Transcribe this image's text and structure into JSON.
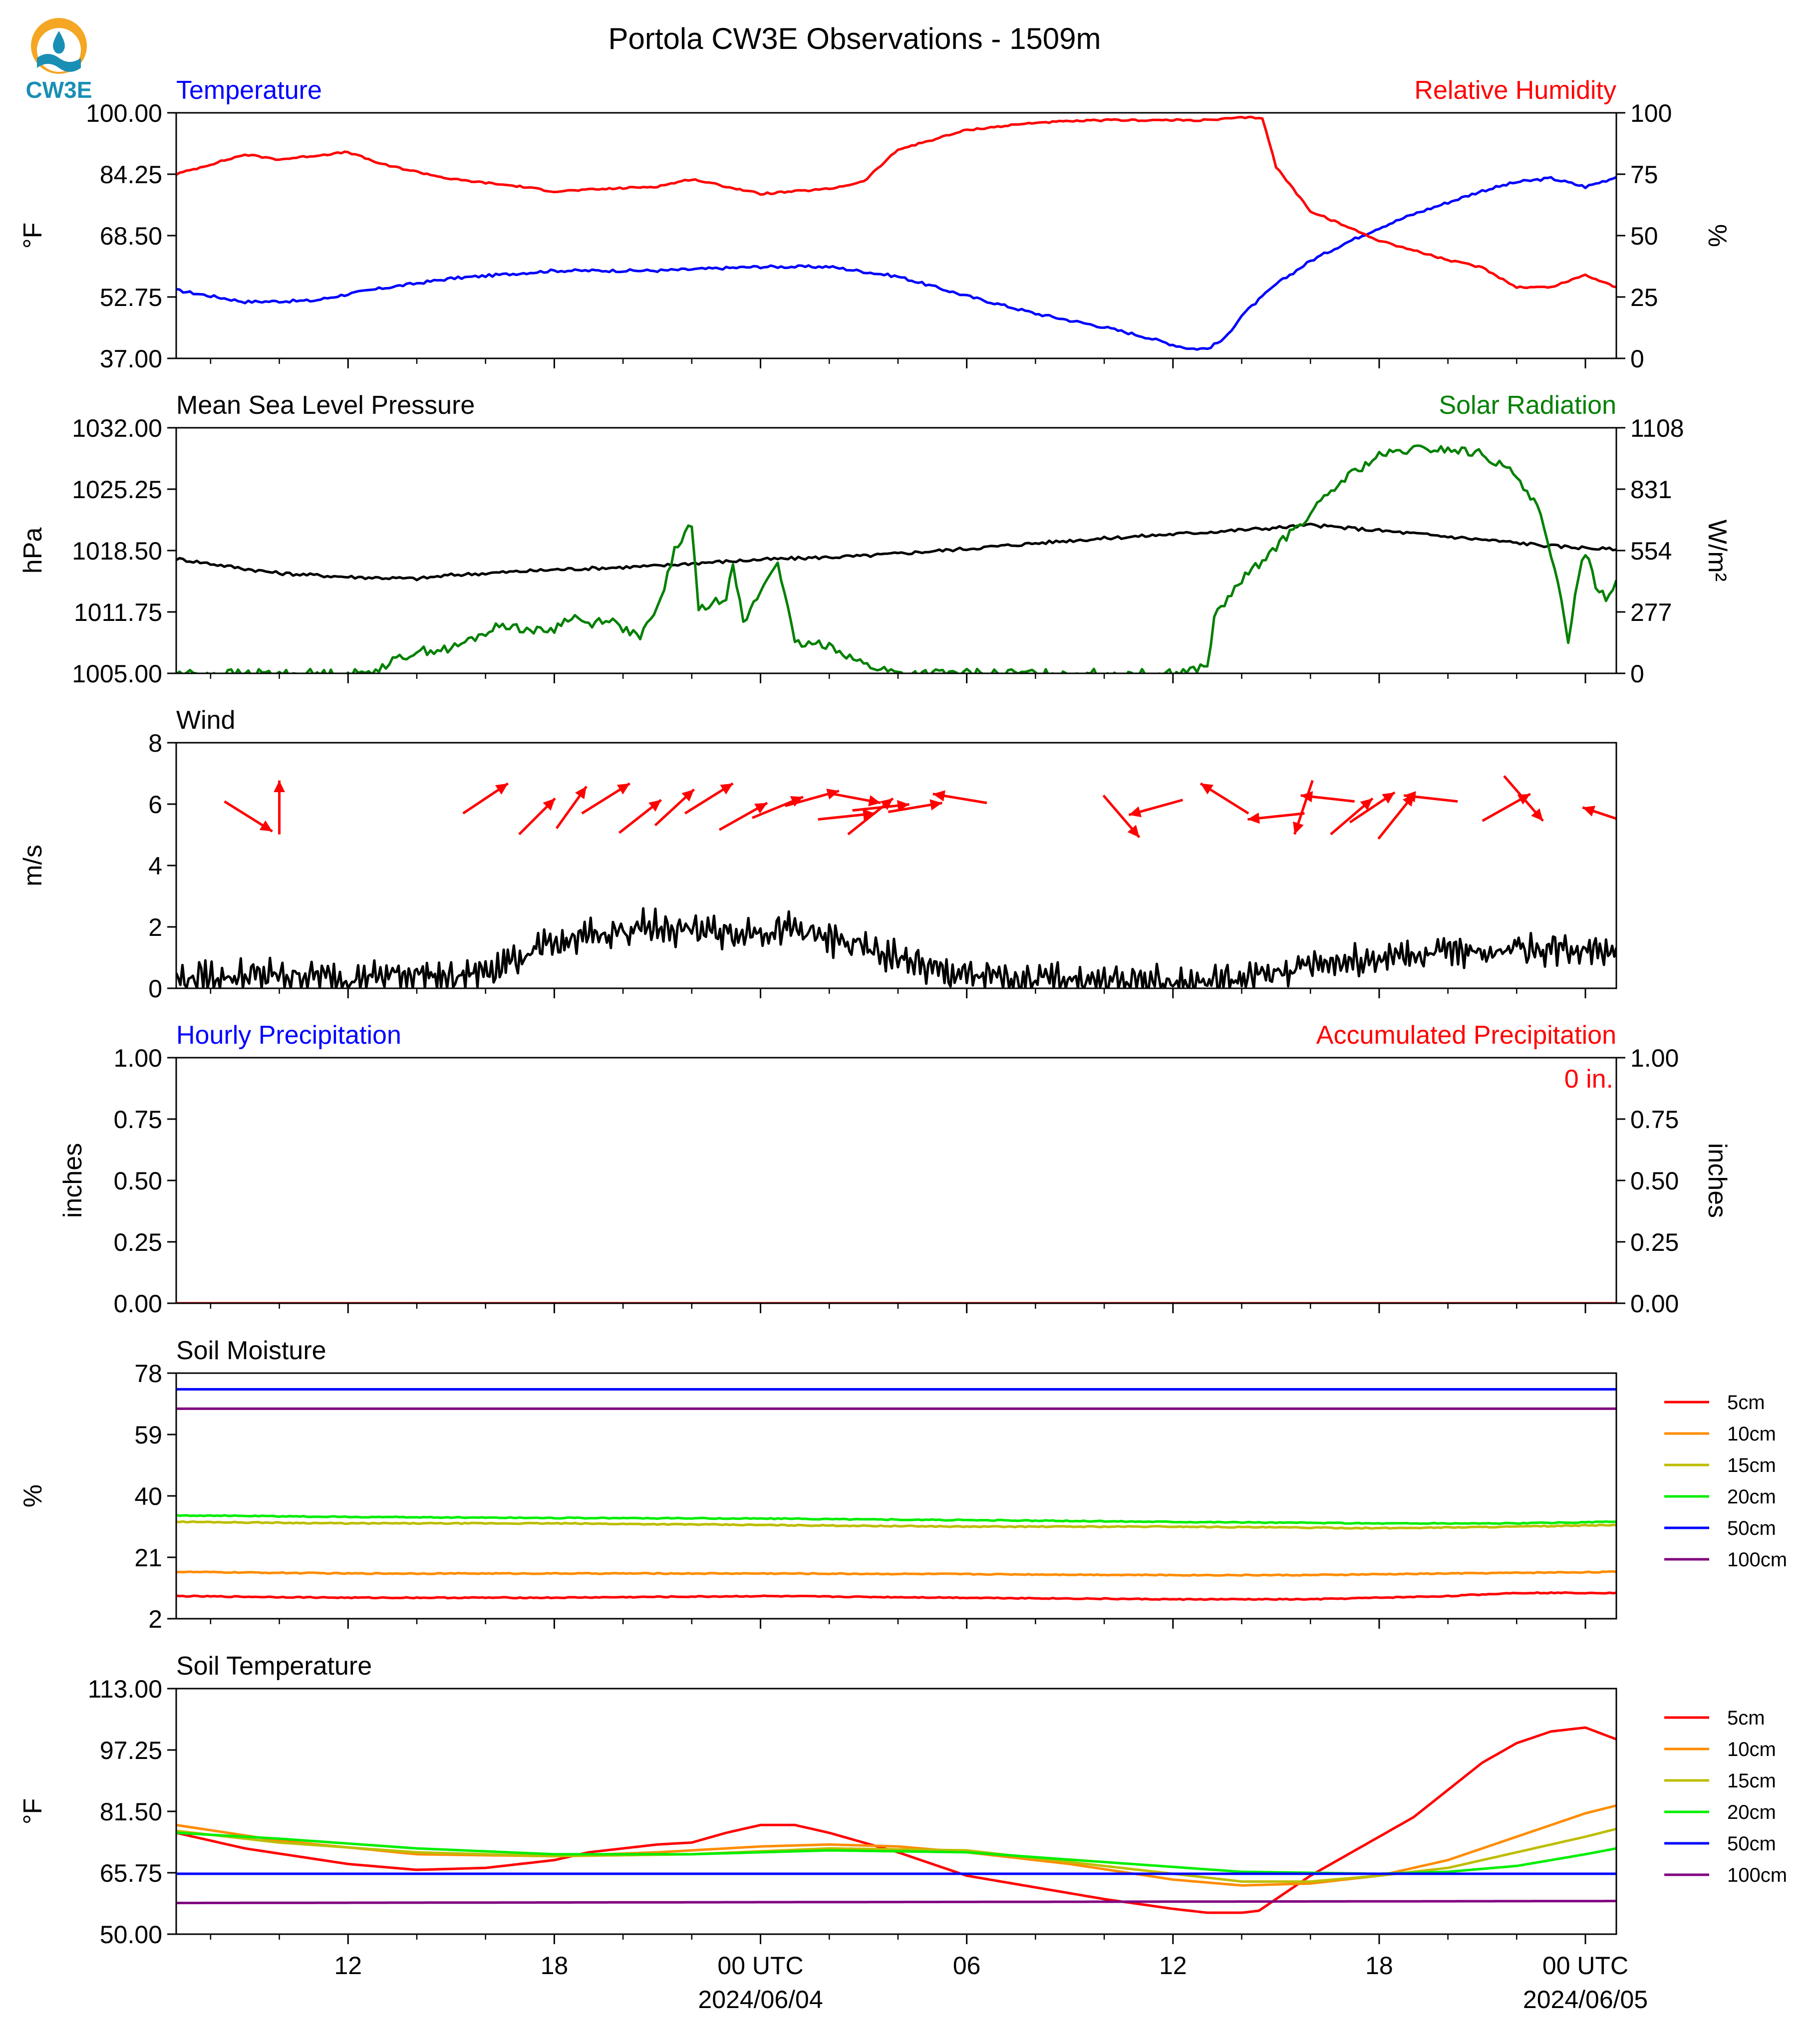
{
  "title": "Portola CW3E Observations - 1509m",
  "logo_text": "CW3E",
  "colors": {
    "blue": "#0000ff",
    "red": "#ff0000",
    "green": "#008000",
    "black": "#000000",
    "legend": [
      "#ff0000",
      "#ff8c00",
      "#bdbd00",
      "#00ee00",
      "#0000ff",
      "#800080"
    ],
    "logo_orange": "#f5a623",
    "logo_teal": "#1a8fb5"
  },
  "x_axis": {
    "tick_labels": [
      {
        "hour": 12,
        "label": "12"
      },
      {
        "hour": 18,
        "label": "18"
      },
      {
        "hour": 24,
        "label": "00 UTC",
        "date": "2024/06/04"
      },
      {
        "hour": 30,
        "label": "06"
      },
      {
        "hour": 36,
        "label": "12"
      },
      {
        "hour": 42,
        "label": "18"
      },
      {
        "hour": 48,
        "label": "00 UTC",
        "date": "2024/06/05"
      }
    ]
  },
  "chart_data": [
    {
      "type": "line",
      "title_left": "Temperature",
      "title_right": "Relative Humidity",
      "ylabel_left": "°F",
      "ylabel_right": "%",
      "ylim_left": [
        37,
        100
      ],
      "ylim_right": [
        0,
        100
      ],
      "yticks_left": [
        "100.00",
        "84.25",
        "68.50",
        "52.75",
        "37.00"
      ],
      "yticks_right": [
        "100",
        "75",
        "50",
        "25",
        "0"
      ],
      "series": [
        {
          "axis": "left",
          "color": "blue",
          "x": [
            7,
            9,
            11,
            12,
            13,
            15,
            18,
            21,
            24,
            26,
            28,
            30,
            32,
            34,
            35.2,
            36,
            36.5,
            37,
            37.5,
            38,
            39,
            40,
            41,
            42,
            43,
            44,
            45,
            46,
            47,
            48,
            48.9
          ],
          "y": [
            54.5,
            51.5,
            51.8,
            53.5,
            55,
            57.5,
            59.5,
            59.5,
            60.5,
            60.5,
            58,
            53,
            48.5,
            45,
            42.5,
            40.5,
            39.5,
            39.5,
            42,
            48,
            56,
            62,
            66.5,
            70.5,
            74,
            77,
            80,
            82.2,
            83.2,
            81,
            83.5
          ]
        },
        {
          "axis": "right",
          "color": "red",
          "x": [
            7,
            9,
            10,
            12,
            13,
            15,
            17,
            18,
            21,
            22,
            24,
            26,
            27,
            28,
            30,
            32,
            34,
            35,
            36,
            37,
            38,
            38.6,
            39,
            40,
            42,
            44,
            45,
            46,
            47,
            48,
            48.9
          ],
          "y": [
            75,
            83,
            81,
            84,
            79,
            73,
            70,
            68,
            70,
            73,
            67,
            69,
            72,
            85,
            93,
            96,
            97,
            97,
            97,
            97,
            98,
            98,
            78,
            60,
            48,
            40,
            37,
            29,
            29,
            34,
            29
          ]
        }
      ]
    },
    {
      "type": "line",
      "title_left": "Mean Sea Level Pressure",
      "title_right": "Solar Radiation",
      "ylabel_left": "hPa",
      "ylabel_right": "W/m²",
      "ylim_left": [
        1005,
        1032
      ],
      "ylim_right": [
        0,
        1108
      ],
      "yticks_left": [
        "1032.00",
        "1025.25",
        "1018.50",
        "1011.75",
        "1005.00"
      ],
      "yticks_right": [
        "1108",
        "831",
        "554",
        "277",
        "0"
      ],
      "series": [
        {
          "axis": "left",
          "color": "black",
          "x": [
            7,
            9,
            10,
            12,
            14,
            15,
            18,
            21,
            22,
            24,
            27,
            30,
            33,
            36,
            39,
            40,
            42,
            45,
            47,
            48,
            48.9
          ],
          "y": [
            1017.6,
            1016.5,
            1016,
            1015.6,
            1015.4,
            1015.8,
            1016.4,
            1016.8,
            1017.1,
            1017.5,
            1017.9,
            1018.7,
            1019.6,
            1020.3,
            1021,
            1021.3,
            1020.7,
            1019.7,
            1019,
            1018.8,
            1018.6
          ]
        },
        {
          "axis": "right",
          "color": "green",
          "x": [
            7,
            12.5,
            14,
            15,
            16.5,
            17.5,
            18,
            18.5,
            19,
            19.5,
            20.5,
            21,
            21.5,
            22,
            22.2,
            23,
            23.2,
            23.5,
            24,
            24.5,
            25,
            26,
            27,
            28,
            30,
            33,
            35.5,
            36,
            37,
            37.2,
            38,
            40,
            41,
            42,
            43,
            44,
            45,
            46,
            46.6,
            47,
            47.3,
            47.5,
            47.8,
            48,
            48.3,
            48.6,
            48.9
          ],
          "y": [
            0,
            0,
            100,
            110,
            220,
            190,
            200,
            260,
            220,
            250,
            160,
            290,
            550,
            680,
            280,
            350,
            510,
            220,
            370,
            510,
            130,
            130,
            40,
            0,
            0,
            0,
            0,
            0,
            30,
            250,
            420,
            720,
            880,
            980,
            1010,
            1010,
            990,
            890,
            760,
            520,
            330,
            150,
            450,
            550,
            400,
            340,
            420
          ]
        }
      ]
    },
    {
      "type": "line",
      "title_left": "Wind",
      "ylabel_left": "m/s",
      "ylim_left": [
        0,
        8
      ],
      "yticks_left": [
        "8",
        "6",
        "4",
        "2",
        "0"
      ],
      "series": [
        {
          "axis": "left",
          "color": "black",
          "x": [
            7,
            9,
            11,
            12,
            13,
            14,
            15,
            16,
            17,
            18,
            19,
            20,
            21,
            22,
            23,
            24,
            25,
            26,
            27,
            28,
            29,
            30,
            31,
            32,
            33,
            34,
            35,
            36,
            37,
            38,
            39,
            40,
            41,
            42,
            43,
            44,
            45,
            46,
            47,
            48,
            48.9
          ],
          "y": [
            0.3,
            0.4,
            0.4,
            0.3,
            0.4,
            0.5,
            0.3,
            0.6,
            1,
            1.4,
            1.7,
            1.9,
            2,
            1.9,
            1.8,
            1.9,
            1.9,
            1.6,
            1.3,
            1,
            0.6,
            0.4,
            0.3,
            0.3,
            0.3,
            0.2,
            0.2,
            0.2,
            0.2,
            0.3,
            0.5,
            0.8,
            0.9,
            1,
            1.1,
            1.2,
            1.2,
            1.3,
            1.3,
            1.3,
            1.4
          ]
        }
      ],
      "barbs": [
        {
          "x": 9.1,
          "u": 0.8,
          "v": -0.5
        },
        {
          "x": 10,
          "u": 0,
          "v": 0.9
        },
        {
          "x": 16,
          "u": 0.75,
          "v": 0.5
        },
        {
          "x": 17.5,
          "u": 0.6,
          "v": 0.6
        },
        {
          "x": 18.5,
          "u": 0.5,
          "v": 0.7
        },
        {
          "x": 19.5,
          "u": 0.8,
          "v": 0.5
        },
        {
          "x": 20.5,
          "u": 0.7,
          "v": 0.55
        },
        {
          "x": 21.5,
          "u": 0.65,
          "v": 0.6
        },
        {
          "x": 22.5,
          "u": 0.8,
          "v": 0.5
        },
        {
          "x": 23.5,
          "u": 0.8,
          "v": 0.45
        },
        {
          "x": 24.5,
          "u": 0.85,
          "v": 0.35
        },
        {
          "x": 25.5,
          "u": 0.9,
          "v": 0.25
        },
        {
          "x": 26.5,
          "u": 0.95,
          "v": 0.1
        },
        {
          "x": 27.5,
          "u": 0.95,
          "v": 0.1
        },
        {
          "x": 26.8,
          "u": 0.8,
          "v": -0.15
        },
        {
          "x": 27.2,
          "u": 0.75,
          "v": 0.6
        },
        {
          "x": 28.5,
          "u": 0.9,
          "v": 0.15
        },
        {
          "x": 29.8,
          "u": -0.9,
          "v": 0.15
        },
        {
          "x": 34.5,
          "u": 0.6,
          "v": -0.7
        },
        {
          "x": 35.5,
          "u": -0.9,
          "v": -0.25
        },
        {
          "x": 37.5,
          "u": -0.8,
          "v": 0.5
        },
        {
          "x": 39,
          "u": -0.95,
          "v": -0.1
        },
        {
          "x": 39.8,
          "u": -0.3,
          "v": -0.9
        },
        {
          "x": 40.5,
          "u": -0.9,
          "v": 0.1
        },
        {
          "x": 41.2,
          "u": 0.7,
          "v": 0.6
        },
        {
          "x": 41.8,
          "u": 0.75,
          "v": 0.5
        },
        {
          "x": 43.5,
          "u": -0.9,
          "v": 0.1
        },
        {
          "x": 42.5,
          "u": 0.6,
          "v": 0.75
        },
        {
          "x": 45.7,
          "u": 0.8,
          "v": 0.45
        },
        {
          "x": 46.2,
          "u": 0.65,
          "v": -0.75
        },
        {
          "x": 48.7,
          "u": -0.9,
          "v": 0.3
        }
      ]
    },
    {
      "type": "line",
      "title_left": "Hourly Precipitation",
      "title_right": "Accumulated Precipitation",
      "annotation": "0 in.",
      "ylabel_left": "inches",
      "ylabel_right": "inches",
      "ylim_left": [
        0,
        1
      ],
      "ylim_right": [
        0,
        1
      ],
      "yticks_left": [
        "1.00",
        "0.75",
        "0.50",
        "0.25",
        "0.00"
      ],
      "yticks_right": [
        "1.00",
        "0.75",
        "0.50",
        "0.25",
        "0.00"
      ],
      "series": [
        {
          "axis": "left",
          "color": "blue",
          "x": [
            7,
            48.9
          ],
          "y": [
            0,
            0
          ]
        },
        {
          "axis": "right",
          "color": "red",
          "x": [
            7,
            48.9
          ],
          "y": [
            0,
            0
          ]
        }
      ]
    },
    {
      "type": "line",
      "title_left": "Soil Moisture",
      "ylabel_left": "%",
      "ylim_left": [
        2,
        78
      ],
      "yticks_left": [
        "78",
        "59",
        "40",
        "21",
        "2"
      ],
      "legend": [
        "5cm",
        "10cm",
        "15cm",
        "20cm",
        "50cm",
        "100cm"
      ],
      "series": [
        {
          "axis": "left",
          "name": "5cm",
          "color": "red",
          "x": [
            7,
            12,
            18,
            24,
            30,
            36,
            40,
            44,
            46,
            48.9
          ],
          "y": [
            9,
            8.5,
            8.5,
            9,
            8.5,
            8,
            8,
            9,
            10,
            10
          ]
        },
        {
          "axis": "left",
          "name": "10cm",
          "color": "orange",
          "x": [
            7,
            12,
            18,
            24,
            30,
            36,
            40,
            44,
            48.9
          ],
          "y": [
            16.5,
            16,
            16,
            16,
            15.8,
            15.5,
            15.5,
            16,
            16.5
          ]
        },
        {
          "axis": "left",
          "name": "15cm",
          "color": "olive",
          "x": [
            7,
            12,
            18,
            24,
            30,
            36,
            42,
            46,
            48.9
          ],
          "y": [
            32,
            31.5,
            31.5,
            31,
            30.5,
            30.5,
            30,
            30.5,
            31
          ]
        },
        {
          "axis": "left",
          "name": "20cm",
          "color": "lime",
          "x": [
            7,
            12,
            18,
            24,
            30,
            36,
            42,
            46,
            48.9
          ],
          "y": [
            34,
            33.5,
            33.2,
            33,
            32.5,
            32,
            31.5,
            31.5,
            32
          ]
        },
        {
          "axis": "left",
          "name": "50cm",
          "color": "blue",
          "x": [
            7,
            48.9
          ],
          "y": [
            73,
            73
          ]
        },
        {
          "axis": "left",
          "name": "100cm",
          "color": "purple",
          "x": [
            7,
            48.9
          ],
          "y": [
            67,
            67
          ]
        }
      ]
    },
    {
      "type": "line",
      "title_left": "Soil Temperature",
      "ylabel_left": "°F",
      "ylim_left": [
        50,
        113
      ],
      "yticks_left": [
        "113.00",
        "97.25",
        "81.50",
        "65.75",
        "50.00"
      ],
      "legend": [
        "5cm",
        "10cm",
        "15cm",
        "20cm",
        "50cm",
        "100cm"
      ],
      "series": [
        {
          "axis": "left",
          "name": "5cm",
          "color": "red",
          "x": [
            7,
            9,
            12,
            14,
            16,
            18,
            19,
            21,
            22,
            23,
            24,
            25,
            26,
            27,
            28,
            30,
            32,
            34,
            36,
            37,
            38,
            38.5,
            39,
            40,
            41,
            42,
            43,
            44,
            45,
            46,
            47,
            48,
            48.9
          ],
          "y": [
            76,
            72,
            68,
            66.5,
            67,
            69,
            71,
            73,
            73.5,
            76,
            78,
            78,
            76,
            73.5,
            71,
            65,
            62,
            59,
            56.5,
            55.5,
            55.5,
            56,
            59,
            65,
            70,
            75,
            80,
            87,
            94,
            99,
            102,
            103,
            100
          ]
        },
        {
          "axis": "left",
          "name": "10cm",
          "color": "orange",
          "x": [
            7,
            10,
            14,
            18,
            21,
            24,
            26,
            28,
            30,
            33,
            36,
            38,
            40,
            42,
            44,
            46,
            48,
            48.9
          ],
          "y": [
            78,
            74,
            70.5,
            70,
            71,
            72.5,
            73,
            72.5,
            71,
            68,
            64,
            62.5,
            63,
            65,
            69,
            75,
            81,
            83
          ]
        },
        {
          "axis": "left",
          "name": "15cm",
          "color": "olive",
          "x": [
            7,
            10,
            14,
            18,
            22,
            26,
            30,
            34,
            38,
            40,
            42,
            44,
            46,
            48,
            48.9
          ],
          "y": [
            76.5,
            73.5,
            71,
            70,
            70.5,
            72,
            71.5,
            67.5,
            63.5,
            63.5,
            65,
            67,
            71,
            75,
            77
          ]
        },
        {
          "axis": "left",
          "name": "20cm",
          "color": "lime",
          "x": [
            7,
            10,
            14,
            18,
            22,
            26,
            30,
            34,
            38,
            42,
            44,
            46,
            48,
            48.9
          ],
          "y": [
            76,
            74.5,
            72,
            70.5,
            70.5,
            71.5,
            71,
            68.5,
            66,
            65.5,
            66,
            67.5,
            70.5,
            72
          ]
        },
        {
          "axis": "left",
          "name": "50cm",
          "color": "blue",
          "x": [
            7,
            48.9
          ],
          "y": [
            65.5,
            65.5
          ]
        },
        {
          "axis": "left",
          "name": "100cm",
          "color": "purple",
          "x": [
            7,
            48.9
          ],
          "y": [
            58,
            58.5
          ]
        }
      ]
    }
  ]
}
